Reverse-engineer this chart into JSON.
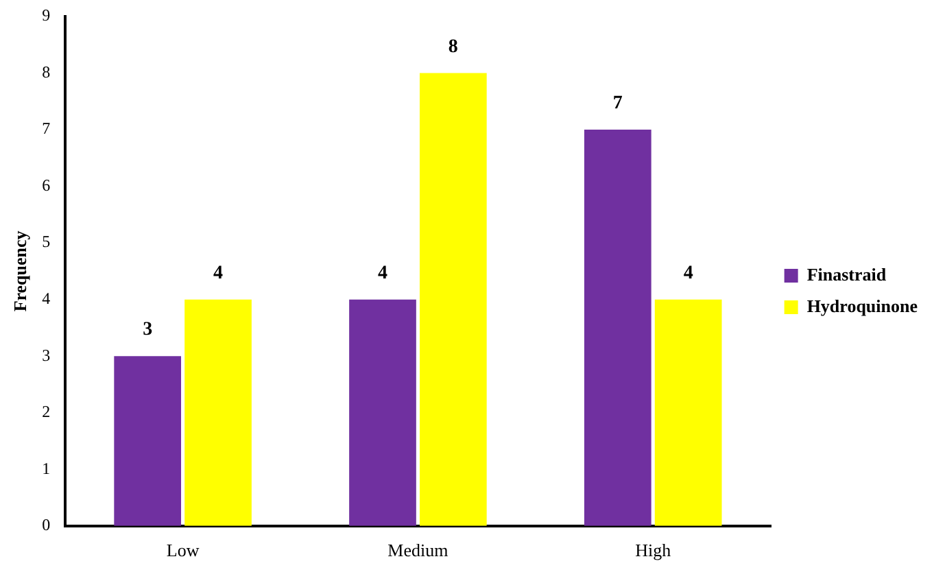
{
  "chart_data": {
    "type": "bar",
    "ylabel": "Frequency",
    "categories": [
      "Low",
      "Medium",
      "High"
    ],
    "series": [
      {
        "name": "Finastraid",
        "color": "#7030a0",
        "values": [
          3,
          4,
          7
        ]
      },
      {
        "name": "Hydroquinone",
        "color": "#ffff00",
        "values": [
          4,
          8,
          4
        ]
      }
    ],
    "ylim": [
      0,
      9
    ],
    "yticks": [
      0,
      1,
      2,
      3,
      4,
      5,
      6,
      7,
      8,
      9
    ],
    "grid": false,
    "legend": "right",
    "data_labels": true
  }
}
